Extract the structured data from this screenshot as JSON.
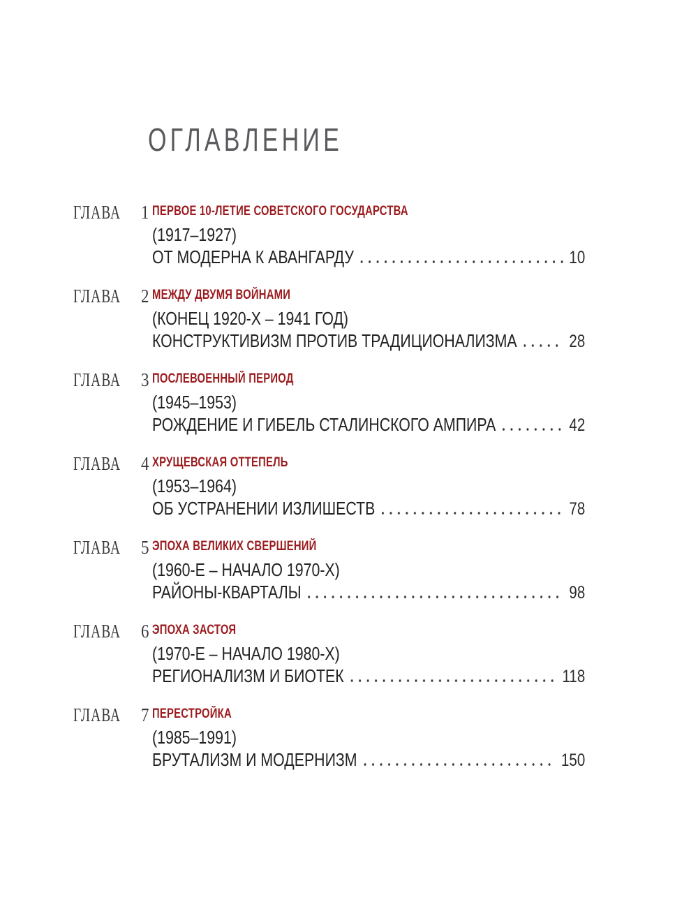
{
  "page": {
    "title": "ОГЛАВЛЕНИЕ"
  },
  "colors": {
    "accent_red": "#9b1b1e",
    "title_gray": "#595a5d",
    "text_dark": "#222224"
  },
  "chapters": [
    {
      "label": "ГЛАВА",
      "number": "1",
      "heading": "ПЕРВОЕ 10-ЛЕТИЕ СОВЕТСКОГО ГОСУДАРСТВА",
      "years": "(1917–1927)",
      "title": "ОТ МОДЕРНА К АВАНГАРДУ",
      "page": "10"
    },
    {
      "label": "ГЛАВА",
      "number": "2",
      "heading": "МЕЖДУ ДВУМЯ ВОЙНАМИ",
      "years": "(КОНЕЦ 1920-Х – 1941 ГОД)",
      "title": "КОНСТРУКТИВИЗМ ПРОТИВ ТРАДИЦИОНАЛИЗМА",
      "page": "28"
    },
    {
      "label": "ГЛАВА",
      "number": "3",
      "heading": "ПОСЛЕВОЕННЫЙ ПЕРИОД",
      "years": "(1945–1953)",
      "title": "РОЖДЕНИЕ И ГИБЕЛЬ СТАЛИНСКОГО АМПИРА",
      "page": "42"
    },
    {
      "label": "ГЛАВА",
      "number": "4",
      "heading": "ХРУЩЕВСКАЯ ОТТЕПЕЛЬ",
      "years": "(1953–1964)",
      "title": "ОБ УСТРАНЕНИИ ИЗЛИШЕСТВ",
      "page": "78"
    },
    {
      "label": "ГЛАВА",
      "number": "5",
      "heading": "ЭПОХА ВЕЛИКИХ СВЕРШЕНИЙ",
      "years": "(1960-Е – НАЧАЛО 1970-Х)",
      "title": "РАЙОНЫ-КВАРТАЛЫ",
      "page": "98"
    },
    {
      "label": "ГЛАВА",
      "number": "6",
      "heading": "ЭПОХА ЗАСТОЯ",
      "years": "(1970-Е – НАЧАЛО 1980-Х)",
      "title": "РЕГИОНАЛИЗМ И БИОТЕК",
      "page": "118"
    },
    {
      "label": "ГЛАВА",
      "number": "7",
      "heading": "ПЕРЕСТРОЙКА",
      "years": "(1985–1991)",
      "title": "БРУТАЛИЗМ И МОДЕРНИЗМ",
      "page": "150"
    }
  ]
}
